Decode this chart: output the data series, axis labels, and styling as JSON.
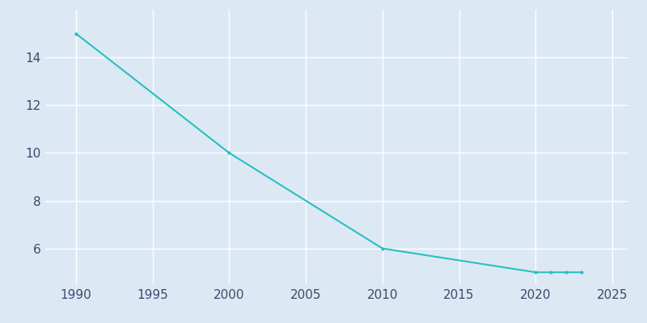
{
  "years": [
    1990,
    2000,
    2010,
    2020,
    2021,
    2022,
    2023
  ],
  "population": [
    15,
    10,
    6,
    5,
    5,
    5,
    5
  ],
  "line_color": "#2abfbf",
  "marker": "o",
  "marker_size": 3,
  "background_color": "#dce9f5",
  "plot_bg_color": "#dce9f5",
  "grid_color": "#ffffff",
  "xlim": [
    1988,
    2026
  ],
  "ylim": [
    4.5,
    16.0
  ],
  "xticks": [
    1990,
    1995,
    2000,
    2005,
    2010,
    2015,
    2020,
    2025
  ],
  "yticks": [
    6,
    8,
    10,
    12,
    14
  ],
  "tick_label_color": "#3b4a6b",
  "tick_fontsize": 11,
  "linewidth": 1.5
}
